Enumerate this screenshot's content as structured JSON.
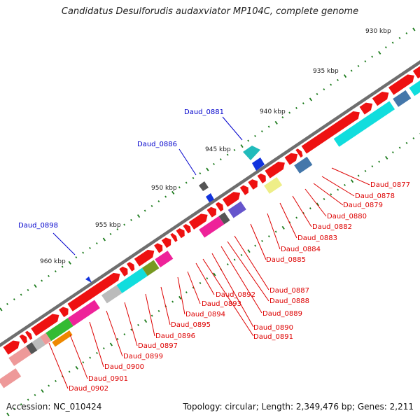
{
  "title": "Candidatus Desulforudis audaxviator MP104C, complete genome",
  "footer": {
    "accession": "Accession: NC_010424",
    "topology": "Topology: circular; Length: 2,349,476 bp; Genes: 2,211"
  },
  "ruler_labels": [
    "930 kbp",
    "935 kbp",
    "940 kbp",
    "945 kbp",
    "950 kbp",
    "955 kbp",
    "960 kbp"
  ],
  "callouts_blue": [
    "Daud_0881",
    "Daud_0886",
    "Daud_0898"
  ],
  "callouts_red": [
    "Daud_0877",
    "Daud_0878",
    "Daud_0879",
    "Daud_0880",
    "Daud_0882",
    "Daud_0883",
    "Daud_0884",
    "Daud_0885",
    "Daud_0887",
    "Daud_0888",
    "Daud_0889",
    "Daud_0890",
    "Daud_0891",
    "Daud_0892",
    "Daud_0893",
    "Daud_0894",
    "Daud_0895",
    "Daud_0896",
    "Daud_0897",
    "Daud_0899",
    "Daud_0900",
    "Daud_0901",
    "Daud_0902"
  ],
  "colors": {
    "backbone": "#7a7a7a",
    "gene_forward": "#ee1111",
    "label_red": "#dd0000",
    "label_blue": "#0000cc",
    "tick": "#1a7a1a",
    "cog_cyan": "#11dddd",
    "cog_magenta": "#ee2299",
    "cog_yellow": "#eeee88",
    "cog_olive": "#779922",
    "cog_green": "#33bb33",
    "cog_orange": "#ee8800",
    "cog_grey": "#bbbbbb",
    "cog_steel": "#4477aa",
    "cog_purple": "#6655cc",
    "cog_pink": "#ee9999",
    "cog_dark": "#555555",
    "reverse_blue": "#1122dd"
  }
}
